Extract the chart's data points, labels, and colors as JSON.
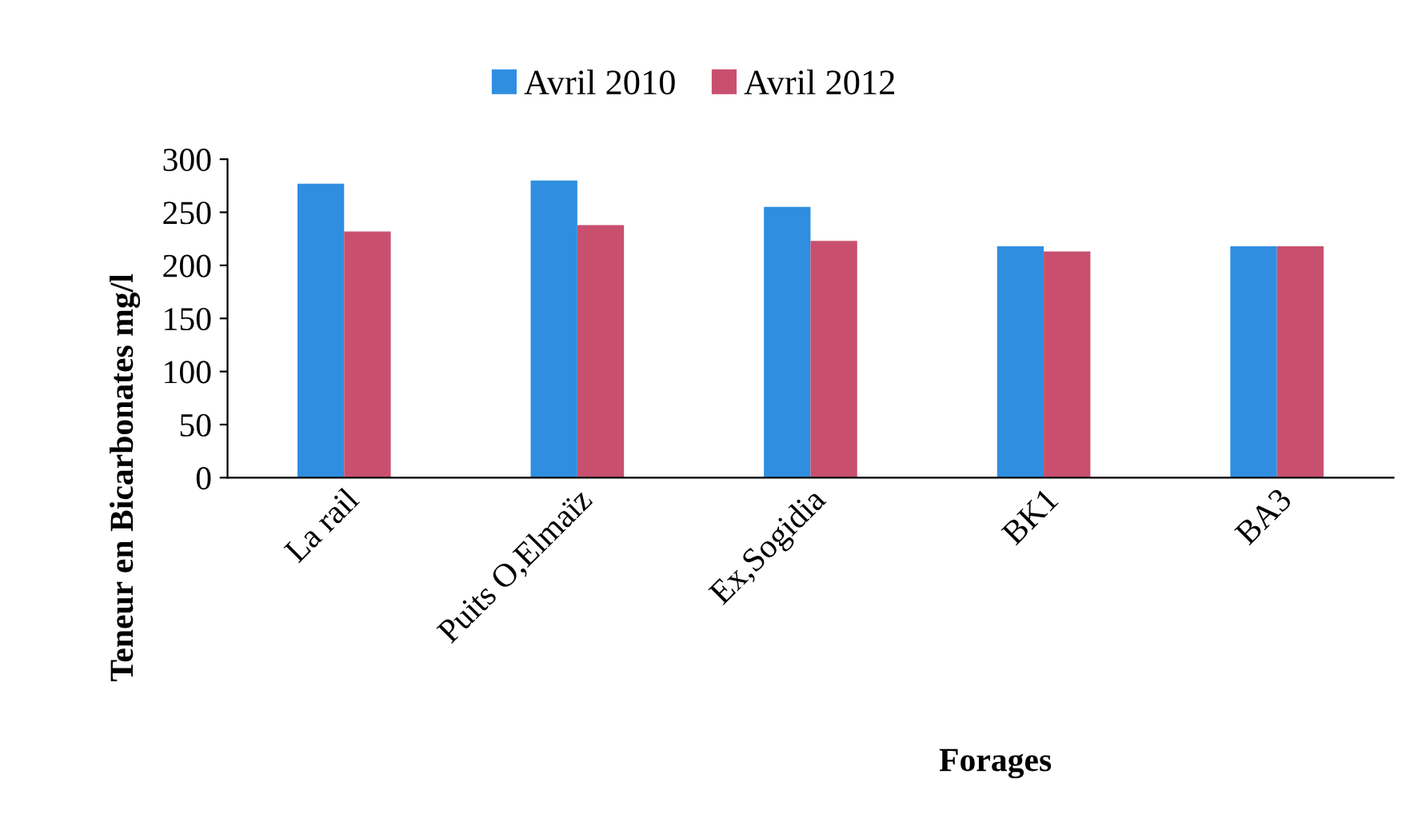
{
  "chart_data": {
    "type": "bar",
    "xlabel": "Forages",
    "ylabel": "Teneur en Bicarbonates mg/l",
    "categories": [
      "La rail",
      "Puits O,Elmaïz",
      "Ex,Sogidia",
      "BK1",
      "BA3"
    ],
    "series": [
      {
        "name": "Avril 2010",
        "color": "#2f8ee0",
        "values": [
          277,
          280,
          255,
          218,
          218
        ]
      },
      {
        "name": "Avril 2012",
        "color": "#c8506e",
        "values": [
          232,
          238,
          223,
          213,
          218
        ]
      }
    ],
    "ylim": [
      0,
      300
    ],
    "yticks": [
      0,
      50,
      100,
      150,
      200,
      250,
      300
    ],
    "grid": false,
    "legend": "top"
  }
}
